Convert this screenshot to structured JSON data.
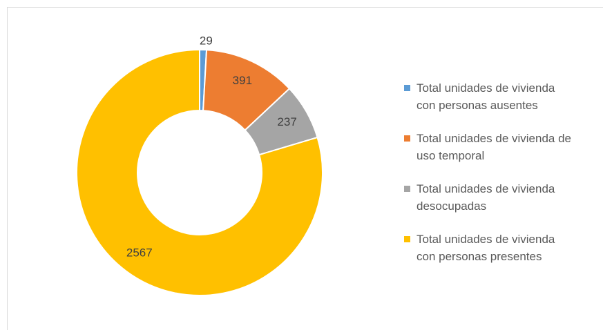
{
  "chart_data": {
    "type": "donut",
    "categories": [
      "Total unidades de vivienda con personas ausentes",
      "Total unidades de vivienda de uso temporal",
      "Total unidades de vivienda desocupadas",
      "Total unidades de vivienda con personas presentes"
    ],
    "values": [
      29,
      391,
      237,
      2567
    ],
    "colors": [
      "#5b9bd5",
      "#ed7d31",
      "#a5a5a5",
      "#ffc000"
    ],
    "legend": "right"
  }
}
